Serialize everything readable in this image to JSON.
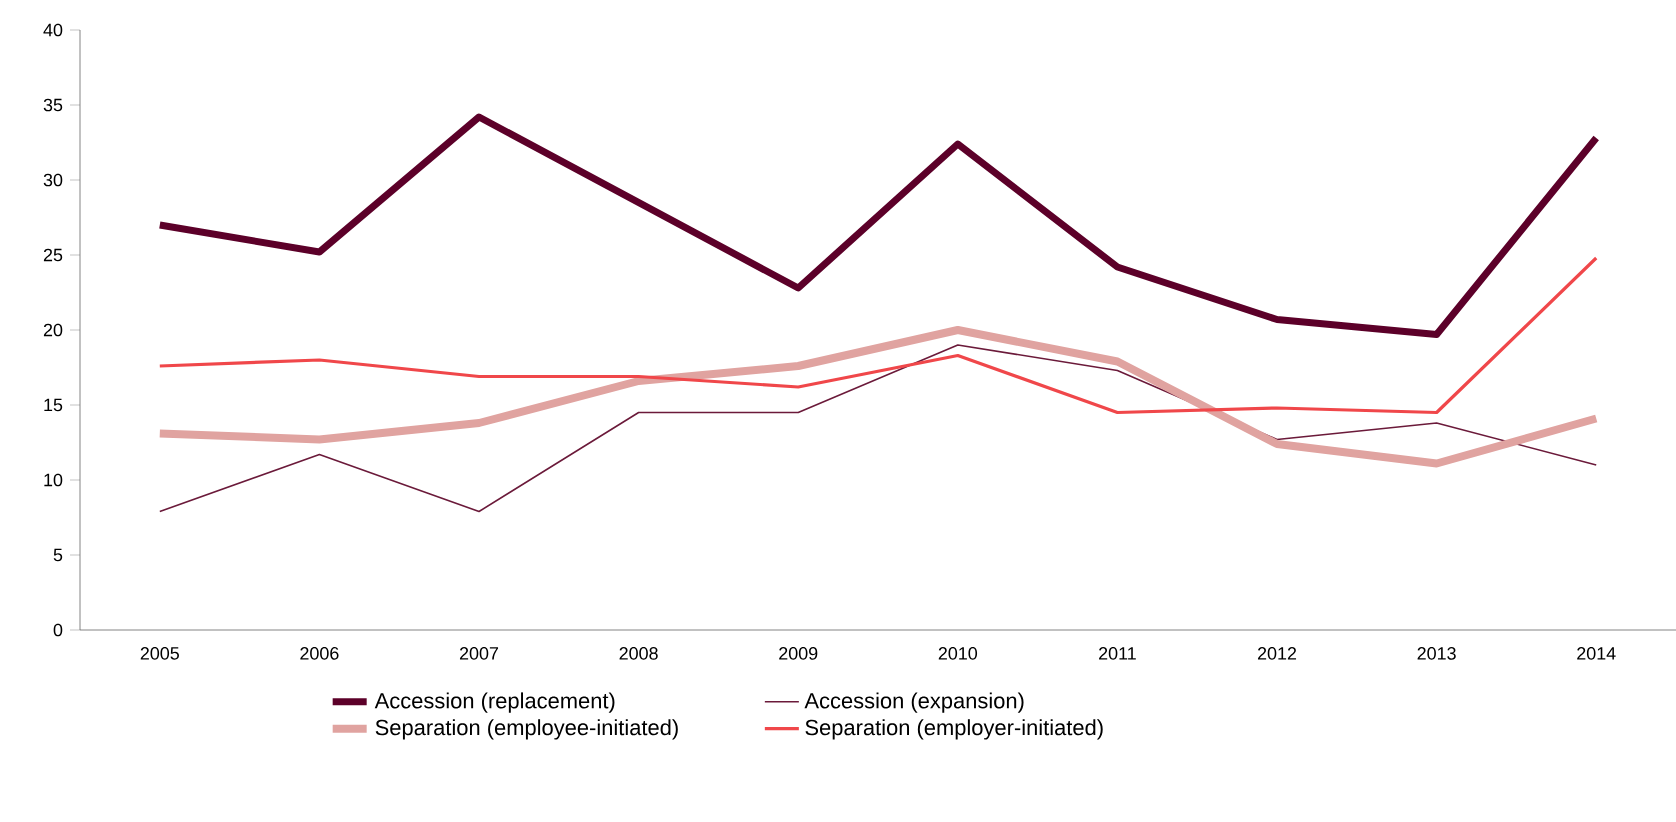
{
  "chart_data": {
    "type": "line",
    "categories": [
      "2005",
      "2006",
      "2007",
      "2008",
      "2009",
      "2010",
      "2011",
      "2012",
      "2013",
      "2014"
    ],
    "series": [
      {
        "name": "Accession (replacement)",
        "color": "#5c0029",
        "values": [
          27,
          25.2,
          34.2,
          28.5,
          22.8,
          32.4,
          24.2,
          20.7,
          19.7,
          32.8
        ]
      },
      {
        "name": "Accession (expansion)",
        "color": "#6b1a3a",
        "values": [
          7.9,
          11.7,
          7.9,
          14.5,
          14.5,
          19,
          17.3,
          12.7,
          13.8,
          11
        ]
      },
      {
        "name": "Separation (employee-initiated)",
        "color": "#e0a3a0",
        "values": [
          13.1,
          12.7,
          13.8,
          16.6,
          17.6,
          20,
          17.9,
          12.4,
          11.1,
          14.1
        ]
      },
      {
        "name": "Separation (employer-initiated)",
        "color": "#f0474a",
        "values": [
          17.6,
          18,
          16.9,
          16.9,
          16.2,
          18.3,
          14.5,
          14.8,
          14.5,
          24.8
        ]
      }
    ],
    "ylim": [
      0,
      40
    ],
    "yticks": [
      0,
      5,
      10,
      15,
      20,
      25,
      30,
      35,
      40
    ],
    "legend": "bottom"
  }
}
